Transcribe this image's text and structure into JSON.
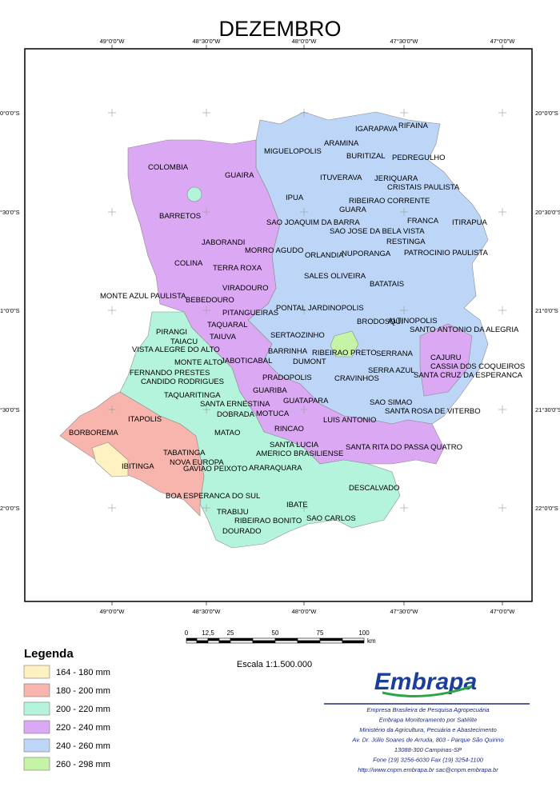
{
  "map": {
    "title": "DEZEMBRO",
    "top_coords": [
      "49°0'0\"W",
      "48°30'0\"W",
      "48°0'0\"W",
      "47°30'0\"W",
      "47°0'0\"W"
    ],
    "bottom_coords": [
      "49°0'0\"W",
      "48°30'0\"W",
      "48°0'0\"W",
      "47°30'0\"W",
      "47°0'0\"W"
    ],
    "left_coords": [
      "0°0'0\"S",
      "°30'0\"S",
      "1°0'0\"S",
      "°30'0\"S",
      "2°0'0\"S"
    ],
    "right_coords": [
      "20°0'0\"S",
      "20°30'0\"S",
      "21°0'0\"S",
      "21°30'0\"S",
      "22°0'0\"S"
    ],
    "cities": [
      "IGARAPAVA",
      "RIFAINA",
      "ARAMINA",
      "MIGUELOPOLIS",
      "BURITIZAL",
      "PEDREGULHO",
      "COLOMBIA",
      "GUAIRA",
      "ITUVERAVA",
      "JERIQUARA",
      "CRISTAIS PAULISTA",
      "IPUA",
      "RIBEIRAO CORRENTE",
      "GUARA",
      "BARRETOS",
      "SAO JOAQUIM DA BARRA",
      "FRANCA",
      "SAO JOSE DA BELA VISTA",
      "ITIRAPUA",
      "JABORANDI",
      "RESTINGA",
      "MORRO AGUDO",
      "ORLANDIA",
      "NUPORANGA",
      "PATROCINIO PAULISTA",
      "COLINA",
      "TERRA ROXA",
      "SALES OLIVEIRA",
      "BATATAIS",
      "VIRADOURO",
      "MONTE AZUL PAULISTA",
      "BEBEDOURO",
      "PONTAL",
      "JARDINOPOLIS",
      "PITANGUEIRAS",
      "BRODOSQUI",
      "ALTINOPOLIS",
      "TAQUARAL",
      "SANTO ANTONIO DA ALEGRIA",
      "PIRANGI",
      "SERTAOZINHO",
      "TAIUVA",
      "TAIACU",
      "VISTA ALEGRE DO ALTO",
      "BARRINHA",
      "RIBEIRAO PRETO",
      "SERRANA",
      "CAJURU",
      "JABOTICABAL",
      "DUMONT",
      "MONTE ALTO",
      "CASSIA DOS COQUEIROS",
      "FERNANDO PRESTES",
      "SERRA AZUL",
      "SANTA CRUZ DA ESPERANCA",
      "PRADOPOLIS",
      "CRAVINHOS",
      "CANDIDO RODRIGUES",
      "GUARIBA",
      "TAQUARITINGA",
      "GUATAPARA",
      "SAO SIMAO",
      "SANTA ERNESTINA",
      "ITAPOLIS",
      "MOTUCA",
      "DOBRADA",
      "SANTA ROSA DE VITERBO",
      "LUIS ANTONIO",
      "BORBOREMA",
      "MATAO",
      "RINCAO",
      "SANTA LUCIA",
      "SANTA RITA DO PASSA QUATRO",
      "TABATINGA",
      "AMERICO BRASILIENSE",
      "NOVA EUROPA",
      "IBITINGA",
      "GAVIAO PEIXOTO",
      "ARARAQUARA",
      "DESCALVADO",
      "BOA ESPERANCA DO SUL",
      "IBATE",
      "TRABIJU",
      "SAO CARLOS",
      "RIBEIRAO BONITO",
      "DOURADO"
    ],
    "scale_labels": [
      "0",
      "12,5",
      "25",
      "50",
      "75",
      "100"
    ],
    "scale_unit": "km",
    "scale_text": "Escala 1:1.500.000",
    "legend_title": "Legenda",
    "legend": [
      {
        "label": "164 - 180 mm",
        "color": "#fff1c2"
      },
      {
        "label": "180 - 200 mm",
        "color": "#f8b5ad"
      },
      {
        "label": "200 - 220 mm",
        "color": "#b4f4dc"
      },
      {
        "label": "220 - 240 mm",
        "color": "#dba9f4"
      },
      {
        "label": "240 - 260 mm",
        "color": "#bdd6f7"
      },
      {
        "label": "260 - 298 mm",
        "color": "#c6f4a6"
      }
    ],
    "logo": "Embrapa",
    "footer": [
      "Empresa Brasileira de Pesquisa Agropecuária",
      "Embrapa Monitoramento por Satélite",
      "Ministério da Agricultura, Pecuária e Abastecimento",
      "Av. Dr. Júlio Soares de Arruda, 803 - Parque São Quirino",
      "13088-300 Campinas-SP",
      "Fone (19) 3256-6030   Fax (19) 3254-1100",
      "http://www.cnpm.embrapa.br   sac@cnpm.embrapa.br"
    ]
  }
}
